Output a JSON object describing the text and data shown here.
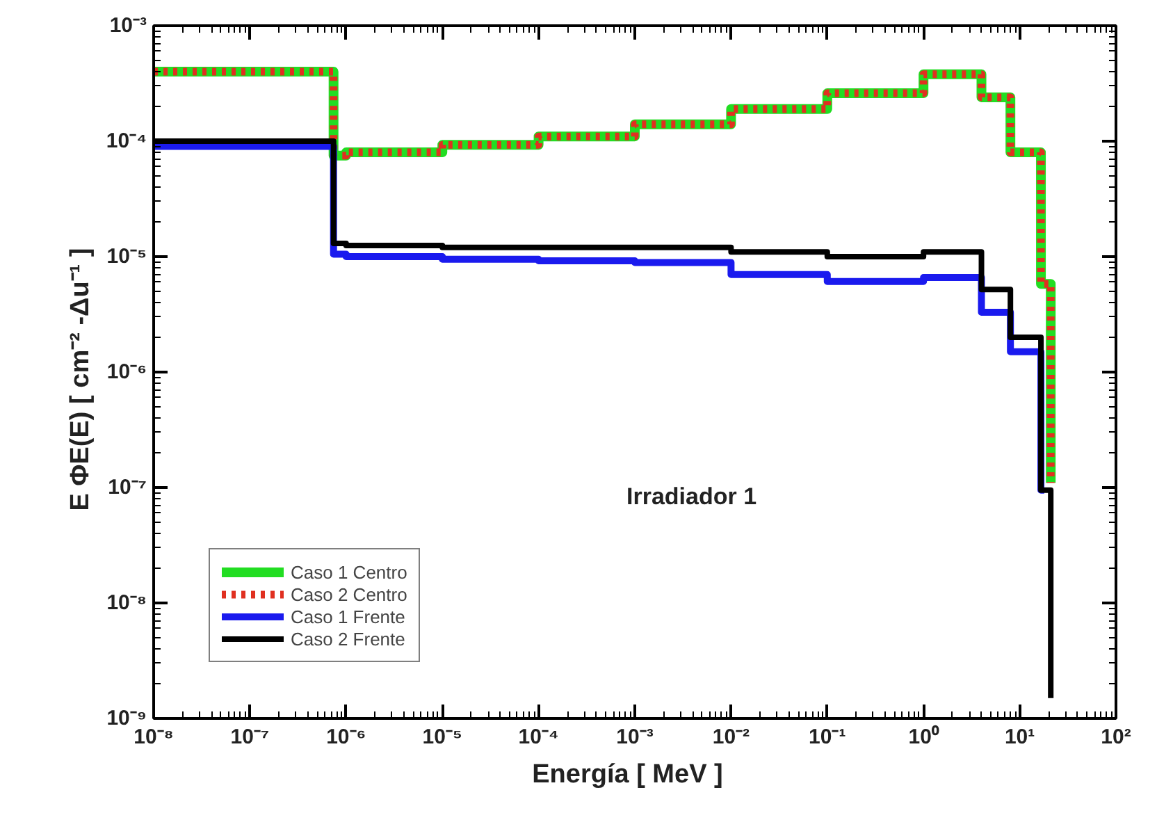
{
  "chart_data": {
    "type": "step",
    "xlabel": "Energía   [ MeV ]",
    "ylabel": "E ΦE(E)   [ cm⁻² -Δu⁻¹ ]",
    "log": "xy",
    "grid": false,
    "legend": "bottom left",
    "annotations": [
      "Irradiador 1"
    ],
    "xlim": [
      1e-08,
      100
    ],
    "ylim": [
      1e-09,
      0.001
    ],
    "xticks": [
      {
        "value": 1e-08,
        "label": "10⁻⁸"
      },
      {
        "value": 1e-07,
        "label": "10⁻⁷"
      },
      {
        "value": 1e-06,
        "label": "10⁻⁶"
      },
      {
        "value": 1e-05,
        "label": "10⁻⁵"
      },
      {
        "value": 0.0001,
        "label": "10⁻⁴"
      },
      {
        "value": 0.001,
        "label": "10⁻³"
      },
      {
        "value": 0.01,
        "label": "10⁻²"
      },
      {
        "value": 0.1,
        "label": "10⁻¹"
      },
      {
        "value": 1,
        "label": "10⁰"
      },
      {
        "value": 10,
        "label": "10¹"
      },
      {
        "value": 100,
        "label": "10²"
      }
    ],
    "yticks": [
      {
        "value": 1e-09,
        "label": "10⁻⁹"
      },
      {
        "value": 1e-08,
        "label": "10⁻⁸"
      },
      {
        "value": 1e-07,
        "label": "10⁻⁷"
      },
      {
        "value": 1e-06,
        "label": "10⁻⁶"
      },
      {
        "value": 1e-05,
        "label": "10⁻⁵"
      },
      {
        "value": 0.0001,
        "label": "10⁻⁴"
      },
      {
        "value": 0.001,
        "label": "10⁻³"
      }
    ],
    "series": [
      {
        "name": "Caso 1 Centro",
        "color": "#22dd22",
        "line_style": "solid",
        "x": [
          1e-08,
          7.4e-07,
          1e-06,
          1e-05,
          0.0001,
          0.001,
          0.01,
          0.1,
          1,
          4,
          8,
          16.6,
          21
        ],
        "values": [
          0.0004,
          7.5e-05,
          8e-05,
          9.3e-05,
          0.00011,
          0.00014,
          0.00019,
          0.00026,
          0.00038,
          0.00024,
          8e-05,
          5.8e-06,
          1.1e-07
        ]
      },
      {
        "name": "Caso 2 Centro",
        "color": "#e03020",
        "line_style": "dotted",
        "x": [
          1e-08,
          7.4e-07,
          1e-06,
          1e-05,
          0.0001,
          0.001,
          0.01,
          0.1,
          1,
          4,
          8,
          16.6,
          21
        ],
        "values": [
          0.0004,
          7.5e-05,
          8e-05,
          9.3e-05,
          0.00011,
          0.00014,
          0.00019,
          0.00026,
          0.00038,
          0.00024,
          8e-05,
          5.8e-06,
          1.1e-07
        ]
      },
      {
        "name": "Caso 1 Frente",
        "color": "#1a1aee",
        "line_style": "solid",
        "x": [
          1e-08,
          7.4e-07,
          1e-06,
          1e-05,
          0.0001,
          0.001,
          0.01,
          0.1,
          1,
          4,
          8,
          16.6,
          18
        ],
        "values": [
          9e-05,
          1.05e-05,
          1e-05,
          9.5e-06,
          9.2e-06,
          8.9e-06,
          7e-06,
          6.1e-06,
          6.6e-06,
          3.3e-06,
          1.5e-06,
          9.5e-08,
          9.5e-08
        ]
      },
      {
        "name": "Caso 2 Frente",
        "color": "#000000",
        "line_style": "solid",
        "x": [
          1e-08,
          7.4e-07,
          1e-06,
          1e-05,
          0.0001,
          0.001,
          0.01,
          0.1,
          1,
          4,
          8,
          16.6,
          21,
          21
        ],
        "values": [
          0.0001,
          1.3e-05,
          1.25e-05,
          1.2e-05,
          1.2e-05,
          1.2e-05,
          1.1e-05,
          1e-05,
          1.1e-05,
          5.2e-06,
          2e-06,
          9.5e-08,
          1.5e-09,
          1.5e-09
        ]
      }
    ]
  }
}
